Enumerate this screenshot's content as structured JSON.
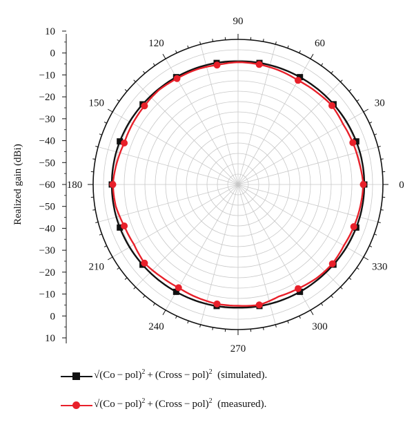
{
  "chart_data": {
    "type": "polar-line",
    "ylabel": "Realized gain (dBi)",
    "radial_ticks": [
      "10",
      "0",
      "−10",
      "−20",
      "−30",
      "−40",
      "−50",
      "−60",
      "−50",
      "−40",
      "−30",
      "−20",
      "−10",
      "0",
      "10"
    ],
    "radial_range": [
      -60,
      10
    ],
    "angle_ticks": [
      "0",
      "30",
      "60",
      "90",
      "120",
      "150",
      "180",
      "210",
      "240",
      "270",
      "300",
      "330"
    ],
    "grid": true,
    "series": [
      {
        "name": "simulated",
        "color": "#111111",
        "marker": "square",
        "theta": [
          0,
          15,
          30,
          45,
          60,
          75,
          90,
          105,
          120,
          135,
          150,
          165,
          180,
          195,
          210,
          225,
          240,
          255,
          270,
          285,
          300,
          315,
          330,
          345
        ],
        "r": [
          1.0,
          0.9,
          0.5,
          0.1,
          -0.2,
          -0.4,
          -0.6,
          -0.4,
          -0.2,
          0.0,
          0.5,
          0.9,
          1.0,
          0.9,
          0.5,
          0.1,
          -0.2,
          -0.4,
          -0.6,
          -0.4,
          -0.2,
          0.0,
          0.5,
          0.9
        ],
        "marker_theta": [
          0,
          20,
          40,
          60,
          80,
          100,
          120,
          140,
          160,
          180,
          200,
          220,
          240,
          260,
          280,
          300,
          320,
          340
        ]
      },
      {
        "name": "measured",
        "color": "#e8202a",
        "marker": "circle",
        "theta": [
          0,
          10,
          20,
          30,
          40,
          50,
          60,
          70,
          80,
          90,
          100,
          110,
          120,
          130,
          140,
          150,
          160,
          170,
          180,
          190,
          200,
          210,
          220,
          230,
          240,
          250,
          260,
          270,
          280,
          290,
          300,
          310,
          320,
          330,
          340,
          350
        ],
        "r": [
          0.5,
          -0.5,
          -1.0,
          -1.5,
          -0.8,
          -1.5,
          -2.0,
          -1.5,
          -1.2,
          -1.0,
          -1.5,
          -1.0,
          -1.0,
          -0.5,
          -1.0,
          -1.2,
          -1.5,
          -0.5,
          0.5,
          0.0,
          -1.5,
          -2.0,
          -1.0,
          -2.0,
          -2.5,
          -2.0,
          -1.5,
          -1.5,
          -1.0,
          -2.5,
          -2.0,
          -1.0,
          -0.5,
          -1.0,
          -0.5,
          0.0
        ],
        "marker_theta": [
          0,
          20,
          40,
          60,
          80,
          100,
          120,
          140,
          160,
          180,
          200,
          220,
          240,
          260,
          280,
          300,
          320,
          340
        ]
      }
    ]
  },
  "legend": {
    "items": [
      {
        "marker": "square",
        "color": "#111111",
        "formula_a": "√(Co − pol)",
        "formula_b": " + (Cross − pol)",
        "note": "(simulated)."
      },
      {
        "marker": "circle",
        "color": "#e8202a",
        "formula_a": "√(Co − pol)",
        "formula_b": " + (Cross − pol)",
        "note": "(measured)."
      }
    ],
    "exponent": "2"
  }
}
